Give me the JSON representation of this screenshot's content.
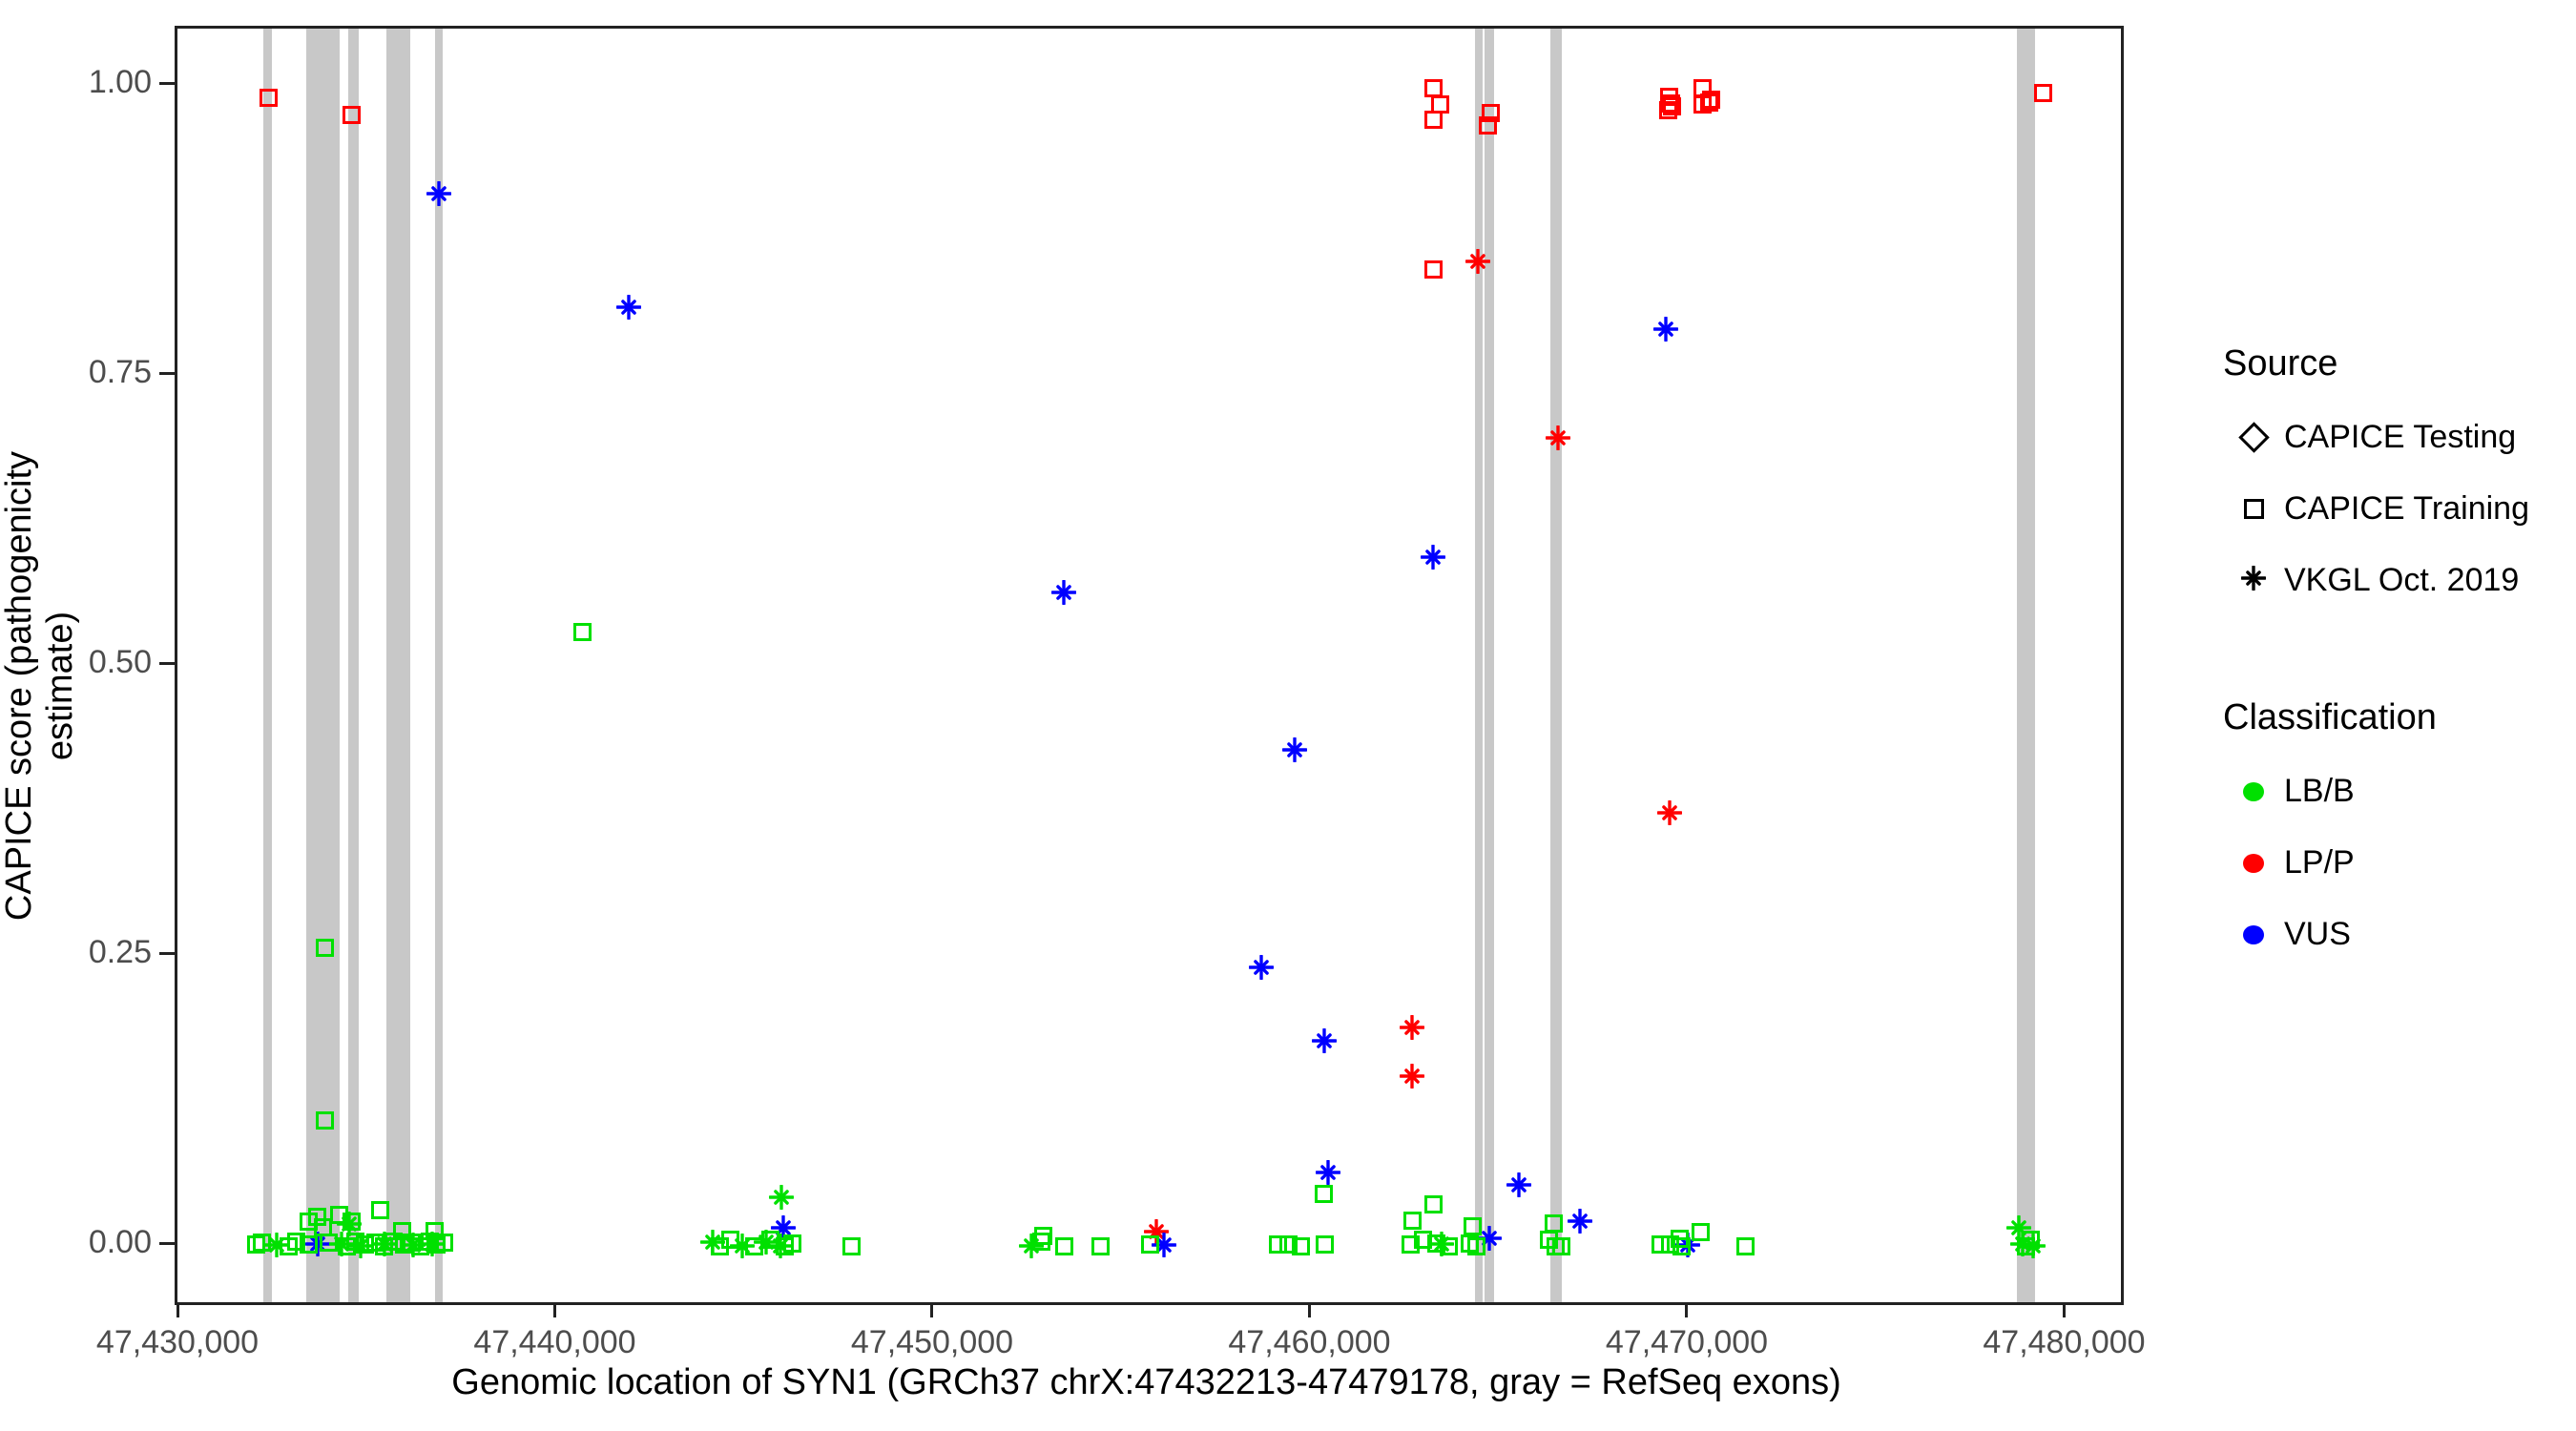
{
  "chart_data": {
    "type": "scatter",
    "title": "",
    "xlabel": "Genomic location of SYN1 (GRCh37 chrX:47432213-47479178, gray = RefSeq exons)",
    "ylabel": "CAPICE score (pathogenicity estimate)",
    "xlim": [
      47429924,
      47481429
    ],
    "ylim": [
      -0.0485,
      1.0494
    ],
    "grid": false,
    "legend_position": "right",
    "x_ticks": [
      {
        "value": 47430000,
        "label": "47,430,000"
      },
      {
        "value": 47440000,
        "label": "47,440,000"
      },
      {
        "value": 47450000,
        "label": "47,450,000"
      },
      {
        "value": 47460000,
        "label": "47,460,000"
      },
      {
        "value": 47470000,
        "label": "47,470,000"
      },
      {
        "value": 47480000,
        "label": "47,480,000"
      }
    ],
    "y_ticks": [
      {
        "value": 0.0,
        "label": "0.00"
      },
      {
        "value": 0.25,
        "label": "0.25"
      },
      {
        "value": 0.5,
        "label": "0.50"
      },
      {
        "value": 0.75,
        "label": "0.75"
      },
      {
        "value": 1.0,
        "label": "1.00"
      }
    ],
    "legend": {
      "source": {
        "title": "Source",
        "items": [
          {
            "label": "CAPICE Testing",
            "marker": "diamond"
          },
          {
            "label": "CAPICE Training",
            "marker": "square"
          },
          {
            "label": "VKGL Oct. 2019",
            "marker": "asterisk"
          }
        ]
      },
      "classification": {
        "title": "Classification",
        "items": [
          {
            "label": "LB/B",
            "color": "#00e000"
          },
          {
            "label": "LP/P",
            "color": "#ff0000"
          },
          {
            "label": "VUS",
            "color": "#0000ff"
          }
        ]
      }
    },
    "colors": {
      "LB/B": "#00e000",
      "LP/P": "#ff0000",
      "VUS": "#0000ff"
    },
    "exon_color": "#c8c8c8",
    "source_marker_map": {
      "sq": "CAPICE Training",
      "ast": "VKGL Oct. 2019",
      "diamond": "CAPICE Testing"
    },
    "exons": [
      [
        47432200,
        47432430
      ],
      [
        47433340,
        47434220
      ],
      [
        47434450,
        47434730
      ],
      [
        47435460,
        47436090
      ],
      [
        47436750,
        47436950
      ],
      [
        47464310,
        47464520
      ],
      [
        47464570,
        47464820
      ],
      [
        47466310,
        47466610
      ],
      [
        47478680,
        47479160
      ]
    ],
    "points": [
      [
        47432330,
        0.99,
        "LP/P",
        "sq"
      ],
      [
        47434530,
        0.975,
        "LP/P",
        "sq"
      ],
      [
        47463200,
        0.998,
        "LP/P",
        "sq"
      ],
      [
        47463400,
        0.984,
        "LP/P",
        "sq"
      ],
      [
        47463200,
        0.971,
        "LP/P",
        "sq"
      ],
      [
        47464740,
        0.977,
        "LP/P",
        "sq"
      ],
      [
        47464640,
        0.966,
        "LP/P",
        "sq"
      ],
      [
        47463200,
        0.842,
        "LP/P",
        "sq"
      ],
      [
        47464390,
        0.849,
        "LP/P",
        "ast"
      ],
      [
        47466510,
        0.697,
        "LP/P",
        "ast"
      ],
      [
        47469470,
        0.373,
        "LP/P",
        "ast"
      ],
      [
        47462650,
        0.188,
        "LP/P",
        "ast"
      ],
      [
        47462650,
        0.146,
        "LP/P",
        "ast"
      ],
      [
        47455870,
        0.012,
        "LP/P",
        "ast"
      ],
      [
        47469450,
        0.991,
        "LP/P",
        "sq"
      ],
      [
        47469420,
        0.979,
        "LP/P",
        "sq"
      ],
      [
        47469520,
        0.982,
        "LP/P",
        "sq"
      ],
      [
        47469500,
        0.985,
        "LP/P",
        "sq"
      ],
      [
        47470330,
        0.998,
        "LP/P",
        "sq"
      ],
      [
        47470560,
        0.988,
        "LP/P",
        "sq"
      ],
      [
        47470330,
        0.984,
        "LP/P",
        "sq"
      ],
      [
        47470510,
        0.986,
        "LP/P",
        "sq"
      ],
      [
        47479360,
        0.994,
        "LP/P",
        "sq"
      ],
      [
        47436850,
        0.907,
        "VUS",
        "ast"
      ],
      [
        47441880,
        0.809,
        "VUS",
        "ast"
      ],
      [
        47453420,
        0.563,
        "VUS",
        "ast"
      ],
      [
        47459540,
        0.428,
        "VUS",
        "ast"
      ],
      [
        47463200,
        0.594,
        "VUS",
        "ast"
      ],
      [
        47458650,
        0.24,
        "VUS",
        "ast"
      ],
      [
        47460320,
        0.177,
        "VUS",
        "ast"
      ],
      [
        47469370,
        0.79,
        "VUS",
        "ast"
      ],
      [
        47460420,
        0.063,
        "VUS",
        "ast"
      ],
      [
        47465480,
        0.053,
        "VUS",
        "ast"
      ],
      [
        47464690,
        0.007,
        "VUS",
        "ast"
      ],
      [
        47467090,
        0.021,
        "VUS",
        "ast"
      ],
      [
        47469950,
        0.001,
        "VUS",
        "ast"
      ],
      [
        47445980,
        0.016,
        "VUS",
        "ast"
      ],
      [
        47433640,
        0.002,
        "VUS",
        "ast"
      ],
      [
        47456070,
        0.001,
        "VUS",
        "ast"
      ],
      [
        47440650,
        0.529,
        "LB/B",
        "sq"
      ],
      [
        47433820,
        0.257,
        "LB/B",
        "sq"
      ],
      [
        47433840,
        0.108,
        "LB/B",
        "sq"
      ],
      [
        47433390,
        0.021,
        "LB/B",
        "sq"
      ],
      [
        47433640,
        0.025,
        "LB/B",
        "sq"
      ],
      [
        47433770,
        0.016,
        "LB/B",
        "sq"
      ],
      [
        47434200,
        0.027,
        "LB/B",
        "sq"
      ],
      [
        47434530,
        0.021,
        "LB/B",
        "sq"
      ],
      [
        47435290,
        0.031,
        "LB/B",
        "sq"
      ],
      [
        47435870,
        0.013,
        "LB/B",
        "sq"
      ],
      [
        47436730,
        0.013,
        "LB/B",
        "sq"
      ],
      [
        47434480,
        0.019,
        "LB/B",
        "ast"
      ],
      [
        47432000,
        0.001,
        "LB/B",
        "sq"
      ],
      [
        47432170,
        0.003,
        "LB/B",
        "sq"
      ],
      [
        47432880,
        0.0,
        "LB/B",
        "sq"
      ],
      [
        47433080,
        0.004,
        "LB/B",
        "sq"
      ],
      [
        47433390,
        0.001,
        "LB/B",
        "sq"
      ],
      [
        47433940,
        0.003,
        "LB/B",
        "sq"
      ],
      [
        47434400,
        0.0,
        "LB/B",
        "sq"
      ],
      [
        47434650,
        0.004,
        "LB/B",
        "sq"
      ],
      [
        47434900,
        0.001,
        "LB/B",
        "sq"
      ],
      [
        47435160,
        0.003,
        "LB/B",
        "sq"
      ],
      [
        47435410,
        0.0,
        "LB/B",
        "sq"
      ],
      [
        47435660,
        0.004,
        "LB/B",
        "sq"
      ],
      [
        47435920,
        0.001,
        "LB/B",
        "sq"
      ],
      [
        47436120,
        0.003,
        "LB/B",
        "sq"
      ],
      [
        47436350,
        0.0,
        "LB/B",
        "sq"
      ],
      [
        47436600,
        0.004,
        "LB/B",
        "sq"
      ],
      [
        47436800,
        0.001,
        "LB/B",
        "sq"
      ],
      [
        47436980,
        0.003,
        "LB/B",
        "sq"
      ],
      [
        47432550,
        0.001,
        "LB/B",
        "ast"
      ],
      [
        47434270,
        0.002,
        "LB/B",
        "ast"
      ],
      [
        47434780,
        0.0,
        "LB/B",
        "ast"
      ],
      [
        47435410,
        0.002,
        "LB/B",
        "ast"
      ],
      [
        47436170,
        0.001,
        "LB/B",
        "ast"
      ],
      [
        47436680,
        0.002,
        "LB/B",
        "ast"
      ],
      [
        47444110,
        0.003,
        "LB/B",
        "ast"
      ],
      [
        47444890,
        0.0,
        "LB/B",
        "ast"
      ],
      [
        47445530,
        0.003,
        "LB/B",
        "ast"
      ],
      [
        47445910,
        0.0,
        "LB/B",
        "ast"
      ],
      [
        47445930,
        0.042,
        "LB/B",
        "ast"
      ],
      [
        47444310,
        0.0,
        "LB/B",
        "sq"
      ],
      [
        47444570,
        0.005,
        "LB/B",
        "sq"
      ],
      [
        47445220,
        0.0,
        "LB/B",
        "sq"
      ],
      [
        47445650,
        0.005,
        "LB/B",
        "sq"
      ],
      [
        47446030,
        0.0,
        "LB/B",
        "sq"
      ],
      [
        47446230,
        0.002,
        "LB/B",
        "sq"
      ],
      [
        47447780,
        0.0,
        "LB/B",
        "sq"
      ],
      [
        47452560,
        0.0,
        "LB/B",
        "ast"
      ],
      [
        47452810,
        0.004,
        "LB/B",
        "sq"
      ],
      [
        47452860,
        0.009,
        "LB/B",
        "sq"
      ],
      [
        47453420,
        0.0,
        "LB/B",
        "sq"
      ],
      [
        47454380,
        0.0,
        "LB/B",
        "sq"
      ],
      [
        47455690,
        0.001,
        "LB/B",
        "sq"
      ],
      [
        47459080,
        0.001,
        "LB/B",
        "sq"
      ],
      [
        47459380,
        0.001,
        "LB/B",
        "sq"
      ],
      [
        47459690,
        0.0,
        "LB/B",
        "sq"
      ],
      [
        47460320,
        0.001,
        "LB/B",
        "sq"
      ],
      [
        47460300,
        0.045,
        "LB/B",
        "sq"
      ],
      [
        47462650,
        0.022,
        "LB/B",
        "sq"
      ],
      [
        47463200,
        0.036,
        "LB/B",
        "sq"
      ],
      [
        47462600,
        0.001,
        "LB/B",
        "sq"
      ],
      [
        47462930,
        0.005,
        "LB/B",
        "sq"
      ],
      [
        47463280,
        0.002,
        "LB/B",
        "sq"
      ],
      [
        47463610,
        0.0,
        "LB/B",
        "sq"
      ],
      [
        47463430,
        0.002,
        "LB/B",
        "ast"
      ],
      [
        47464240,
        0.017,
        "LB/B",
        "sq"
      ],
      [
        47464160,
        0.002,
        "LB/B",
        "sq"
      ],
      [
        47464360,
        0.0,
        "LB/B",
        "sq"
      ],
      [
        47466390,
        0.019,
        "LB/B",
        "sq"
      ],
      [
        47466260,
        0.005,
        "LB/B",
        "sq"
      ],
      [
        47466590,
        0.0,
        "LB/B",
        "sq"
      ],
      [
        47466460,
        0.0,
        "LB/B",
        "sq"
      ],
      [
        47469240,
        0.001,
        "LB/B",
        "sq"
      ],
      [
        47469490,
        0.001,
        "LB/B",
        "sq"
      ],
      [
        47469790,
        0.0,
        "LB/B",
        "sq"
      ],
      [
        47469740,
        0.006,
        "LB/B",
        "sq"
      ],
      [
        47470300,
        0.012,
        "LB/B",
        "sq"
      ],
      [
        47471470,
        0.0,
        "LB/B",
        "sq"
      ],
      [
        47478730,
        0.016,
        "LB/B",
        "ast"
      ],
      [
        47478830,
        0.002,
        "LB/B",
        "ast"
      ],
      [
        47479110,
        0.0,
        "LB/B",
        "ast"
      ],
      [
        47479030,
        0.005,
        "LB/B",
        "sq"
      ],
      [
        47478910,
        0.0,
        "LB/B",
        "sq"
      ]
    ]
  }
}
